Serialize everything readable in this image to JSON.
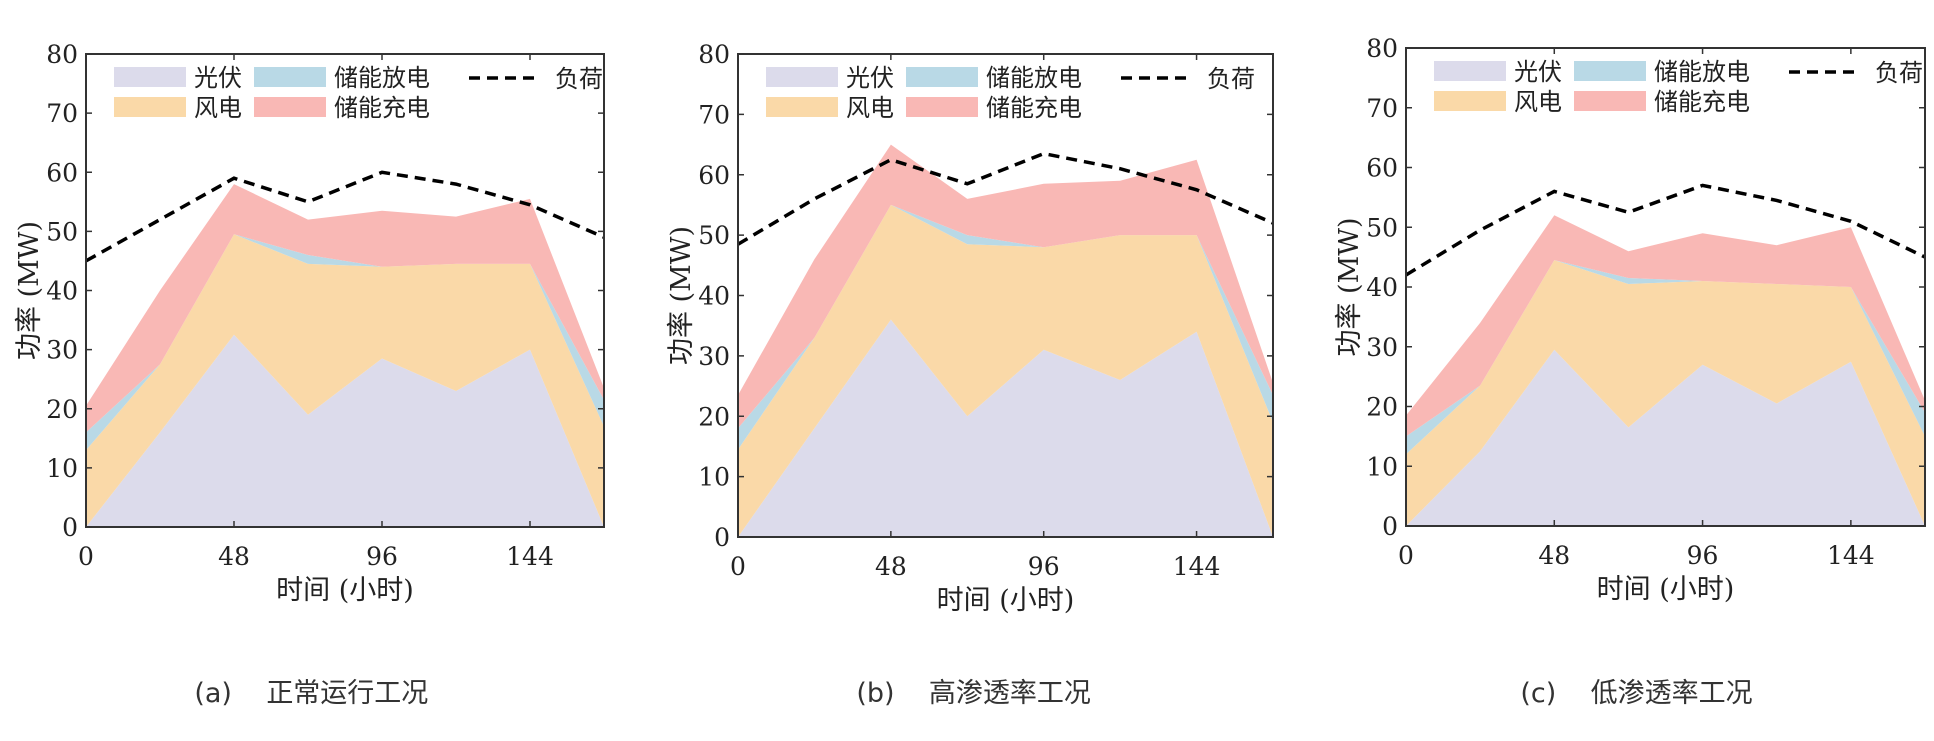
{
  "chart_data": [
    {
      "type": "area",
      "panel_label": "(a)",
      "subtitle": "正常运行工况",
      "xlabel": "时间 (小时)",
      "ylabel": "功率 (MW)",
      "x_ticks": [
        0,
        48,
        96,
        144
      ],
      "y_ticks": [
        0,
        10,
        20,
        30,
        40,
        50,
        60,
        70,
        80
      ],
      "xlim": [
        0,
        168
      ],
      "ylim": [
        0,
        80
      ],
      "legend_position": "top-left",
      "x": [
        0,
        24,
        48,
        72,
        96,
        120,
        144,
        168
      ],
      "series": [
        {
          "name": "光伏",
          "kind": "stacked_area",
          "color": "#dcdbeb",
          "values": [
            0,
            16,
            32.5,
            19,
            28.5,
            23,
            30,
            0
          ]
        },
        {
          "name": "风电",
          "kind": "stacked_area",
          "color": "#fad9a8",
          "values": [
            13,
            11.5,
            17,
            25.5,
            15.5,
            21.5,
            14.5,
            17
          ]
        },
        {
          "name": "储能放电",
          "kind": "stacked_area",
          "color": "#b9d9e6",
          "values": [
            3,
            0,
            0,
            1.5,
            0,
            0,
            0,
            4.5
          ]
        },
        {
          "name": "储能充电",
          "kind": "stacked_area",
          "color": "#f9b8b5",
          "values": [
            4.5,
            12.5,
            8.5,
            6,
            9.5,
            8,
            11,
            2
          ]
        },
        {
          "name": "负荷",
          "kind": "dashed_line",
          "color": "#000000",
          "values": [
            45,
            52,
            59,
            55,
            60,
            58,
            54.5,
            49
          ]
        }
      ]
    },
    {
      "type": "area",
      "panel_label": "(b)",
      "subtitle": "高渗透率工况",
      "xlabel": "时间 (小时)",
      "ylabel": "功率 (MW)",
      "x_ticks": [
        0,
        48,
        96,
        144
      ],
      "y_ticks": [
        0,
        10,
        20,
        30,
        40,
        50,
        60,
        70,
        80
      ],
      "xlim": [
        0,
        168
      ],
      "ylim": [
        0,
        80
      ],
      "legend_position": "top-left",
      "x": [
        0,
        24,
        48,
        72,
        96,
        120,
        144,
        168
      ],
      "series": [
        {
          "name": "光伏",
          "kind": "stacked_area",
          "color": "#dcdbeb",
          "values": [
            0,
            18,
            36,
            20,
            31,
            26,
            34,
            0
          ]
        },
        {
          "name": "风电",
          "kind": "stacked_area",
          "color": "#fad9a8",
          "values": [
            14.5,
            15,
            19,
            28.5,
            17,
            24,
            16,
            19
          ]
        },
        {
          "name": "储能放电",
          "kind": "stacked_area",
          "color": "#b9d9e6",
          "values": [
            3.5,
            0,
            0,
            1.5,
            0,
            0,
            0,
            4.5
          ]
        },
        {
          "name": "储能充电",
          "kind": "stacked_area",
          "color": "#f9b8b5",
          "values": [
            5.5,
            13,
            10,
            6,
            10.5,
            9,
            12.5,
            2
          ]
        },
        {
          "name": "负荷",
          "kind": "dashed_line",
          "color": "#000000",
          "values": [
            48.5,
            56,
            62.5,
            58.5,
            63.5,
            61,
            57.5,
            52
          ]
        }
      ]
    },
    {
      "type": "area",
      "panel_label": "(c)",
      "subtitle": "低渗透率工况",
      "xlabel": "时间 (小时)",
      "ylabel": "功率 (MW)",
      "x_ticks": [
        0,
        48,
        96,
        144
      ],
      "y_ticks": [
        0,
        10,
        20,
        30,
        40,
        50,
        60,
        70,
        80
      ],
      "xlim": [
        0,
        168
      ],
      "ylim": [
        0,
        80
      ],
      "legend_position": "top-left",
      "x": [
        0,
        24,
        48,
        72,
        96,
        120,
        144,
        168
      ],
      "series": [
        {
          "name": "光伏",
          "kind": "stacked_area",
          "color": "#dcdbeb",
          "values": [
            0,
            12.5,
            29.5,
            16.5,
            27,
            20.5,
            27.5,
            0
          ]
        },
        {
          "name": "风电",
          "kind": "stacked_area",
          "color": "#fad9a8",
          "values": [
            12,
            11,
            15,
            24,
            14,
            20,
            12.5,
            15
          ]
        },
        {
          "name": "储能放电",
          "kind": "stacked_area",
          "color": "#b9d9e6",
          "values": [
            3,
            0,
            0,
            1,
            0,
            0,
            0,
            4
          ]
        },
        {
          "name": "储能充电",
          "kind": "stacked_area",
          "color": "#f9b8b5",
          "values": [
            3.5,
            10.5,
            7.5,
            4.5,
            8,
            6.5,
            10,
            2
          ]
        },
        {
          "name": "负荷",
          "kind": "dashed_line",
          "color": "#000000",
          "values": [
            42,
            49.5,
            56,
            52.5,
            57,
            54.5,
            51,
            45
          ]
        }
      ]
    }
  ]
}
